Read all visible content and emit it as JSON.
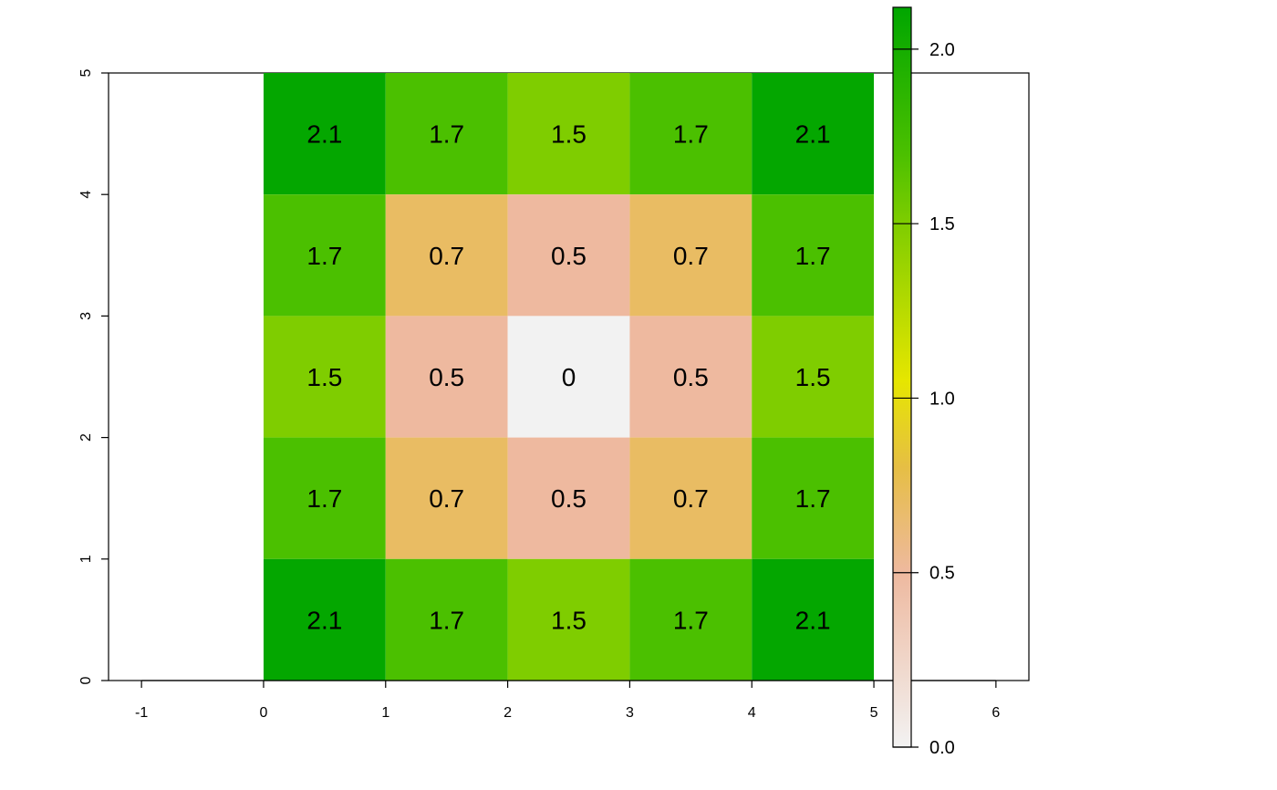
{
  "chart_data": {
    "type": "heatmap",
    "title": "",
    "xlabel": "",
    "ylabel": "",
    "xlim": [
      -1.27,
      6.27
    ],
    "ylim": [
      0,
      5
    ],
    "x_ticks": [
      -1,
      0,
      1,
      2,
      3,
      4,
      5,
      6
    ],
    "y_ticks": [
      0,
      1,
      2,
      3,
      4,
      5
    ],
    "x_tick_labels": [
      "-1",
      "0",
      "1",
      "2",
      "3",
      "4",
      "5",
      "6"
    ],
    "y_tick_labels": [
      "0",
      "1",
      "2",
      "3",
      "4",
      "5"
    ],
    "grid_x": [
      0,
      1,
      2,
      3,
      4,
      5
    ],
    "grid_y": [
      0,
      1,
      2,
      3,
      4,
      5
    ],
    "rows_top_to_bottom": [
      [
        2.1,
        1.7,
        1.5,
        1.7,
        2.1
      ],
      [
        1.7,
        0.7,
        0.5,
        0.7,
        1.7
      ],
      [
        1.5,
        0.5,
        0,
        0.5,
        1.5
      ],
      [
        1.7,
        0.7,
        0.5,
        0.7,
        1.7
      ],
      [
        2.1,
        1.7,
        1.5,
        1.7,
        2.1
      ]
    ],
    "legend": {
      "position": "right",
      "range": [
        0,
        2.12
      ],
      "ticks": [
        0.0,
        0.5,
        1.0,
        1.5,
        2.0
      ],
      "tick_labels": [
        "0.0",
        "0.5",
        "1.0",
        "1.5",
        "2.0"
      ],
      "palette": "terrain",
      "colors": [
        "#F2F2F2",
        "#EEB99F",
        "#E6BE45",
        "#E6E600",
        "#7FCD00",
        "#4BC000",
        "#00A600"
      ],
      "stops": [
        0,
        0.5,
        0.8,
        1.05,
        1.5,
        1.7,
        2.12
      ]
    },
    "show_grid": false
  }
}
